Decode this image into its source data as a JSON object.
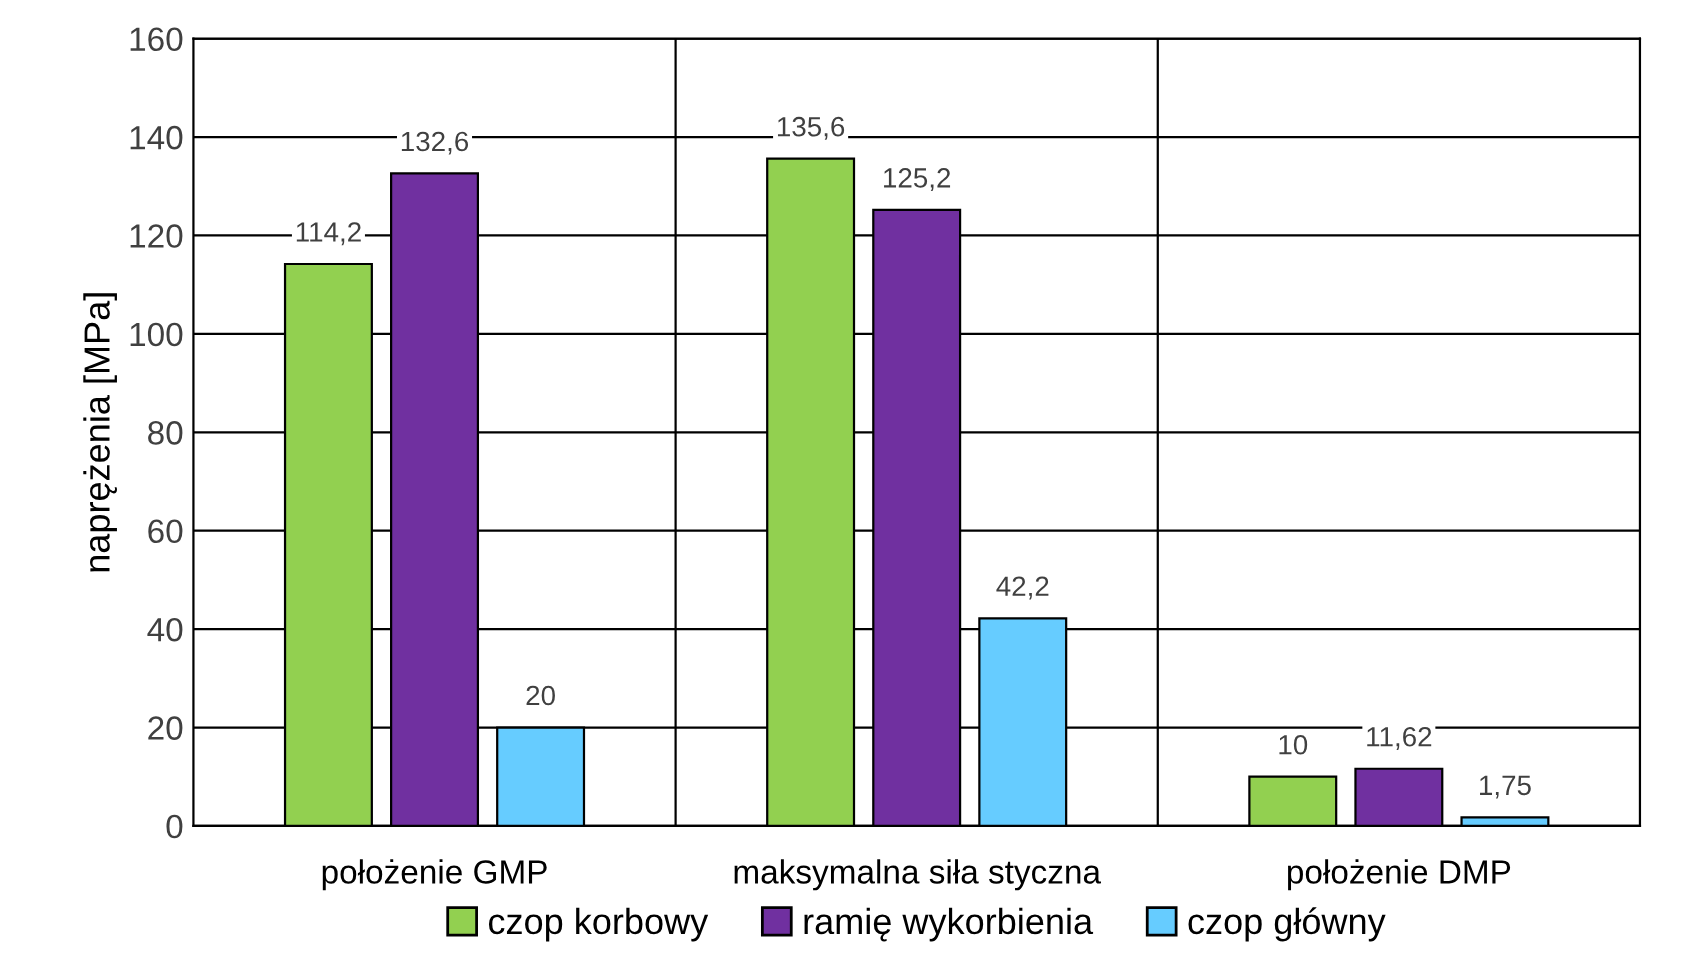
{
  "chart_data": {
    "type": "bar",
    "ylabel": "naprężenia [MPa]",
    "categories": [
      "położenie GMP",
      "maksymalna siła styczna",
      "położenie DMP"
    ],
    "series": [
      {
        "name": "czop korbowy",
        "color": "#92d050",
        "values": [
          114.2,
          135.6,
          10
        ],
        "value_labels": [
          "114,2",
          "135,6",
          "10"
        ]
      },
      {
        "name": "ramię wykorbienia",
        "color": "#7030a0",
        "values": [
          132.6,
          125.2,
          11.62
        ],
        "value_labels": [
          "132,6",
          "125,2",
          "11,62"
        ]
      },
      {
        "name": "czop główny",
        "color": "#66ccff",
        "values": [
          20,
          42.2,
          1.75
        ],
        "value_labels": [
          "20",
          "42,2",
          "1,75"
        ]
      }
    ],
    "ylim": [
      0,
      160
    ],
    "yticks": [
      0,
      20,
      40,
      60,
      80,
      100,
      120,
      140,
      160
    ],
    "grid": true,
    "legend": "bottom"
  }
}
